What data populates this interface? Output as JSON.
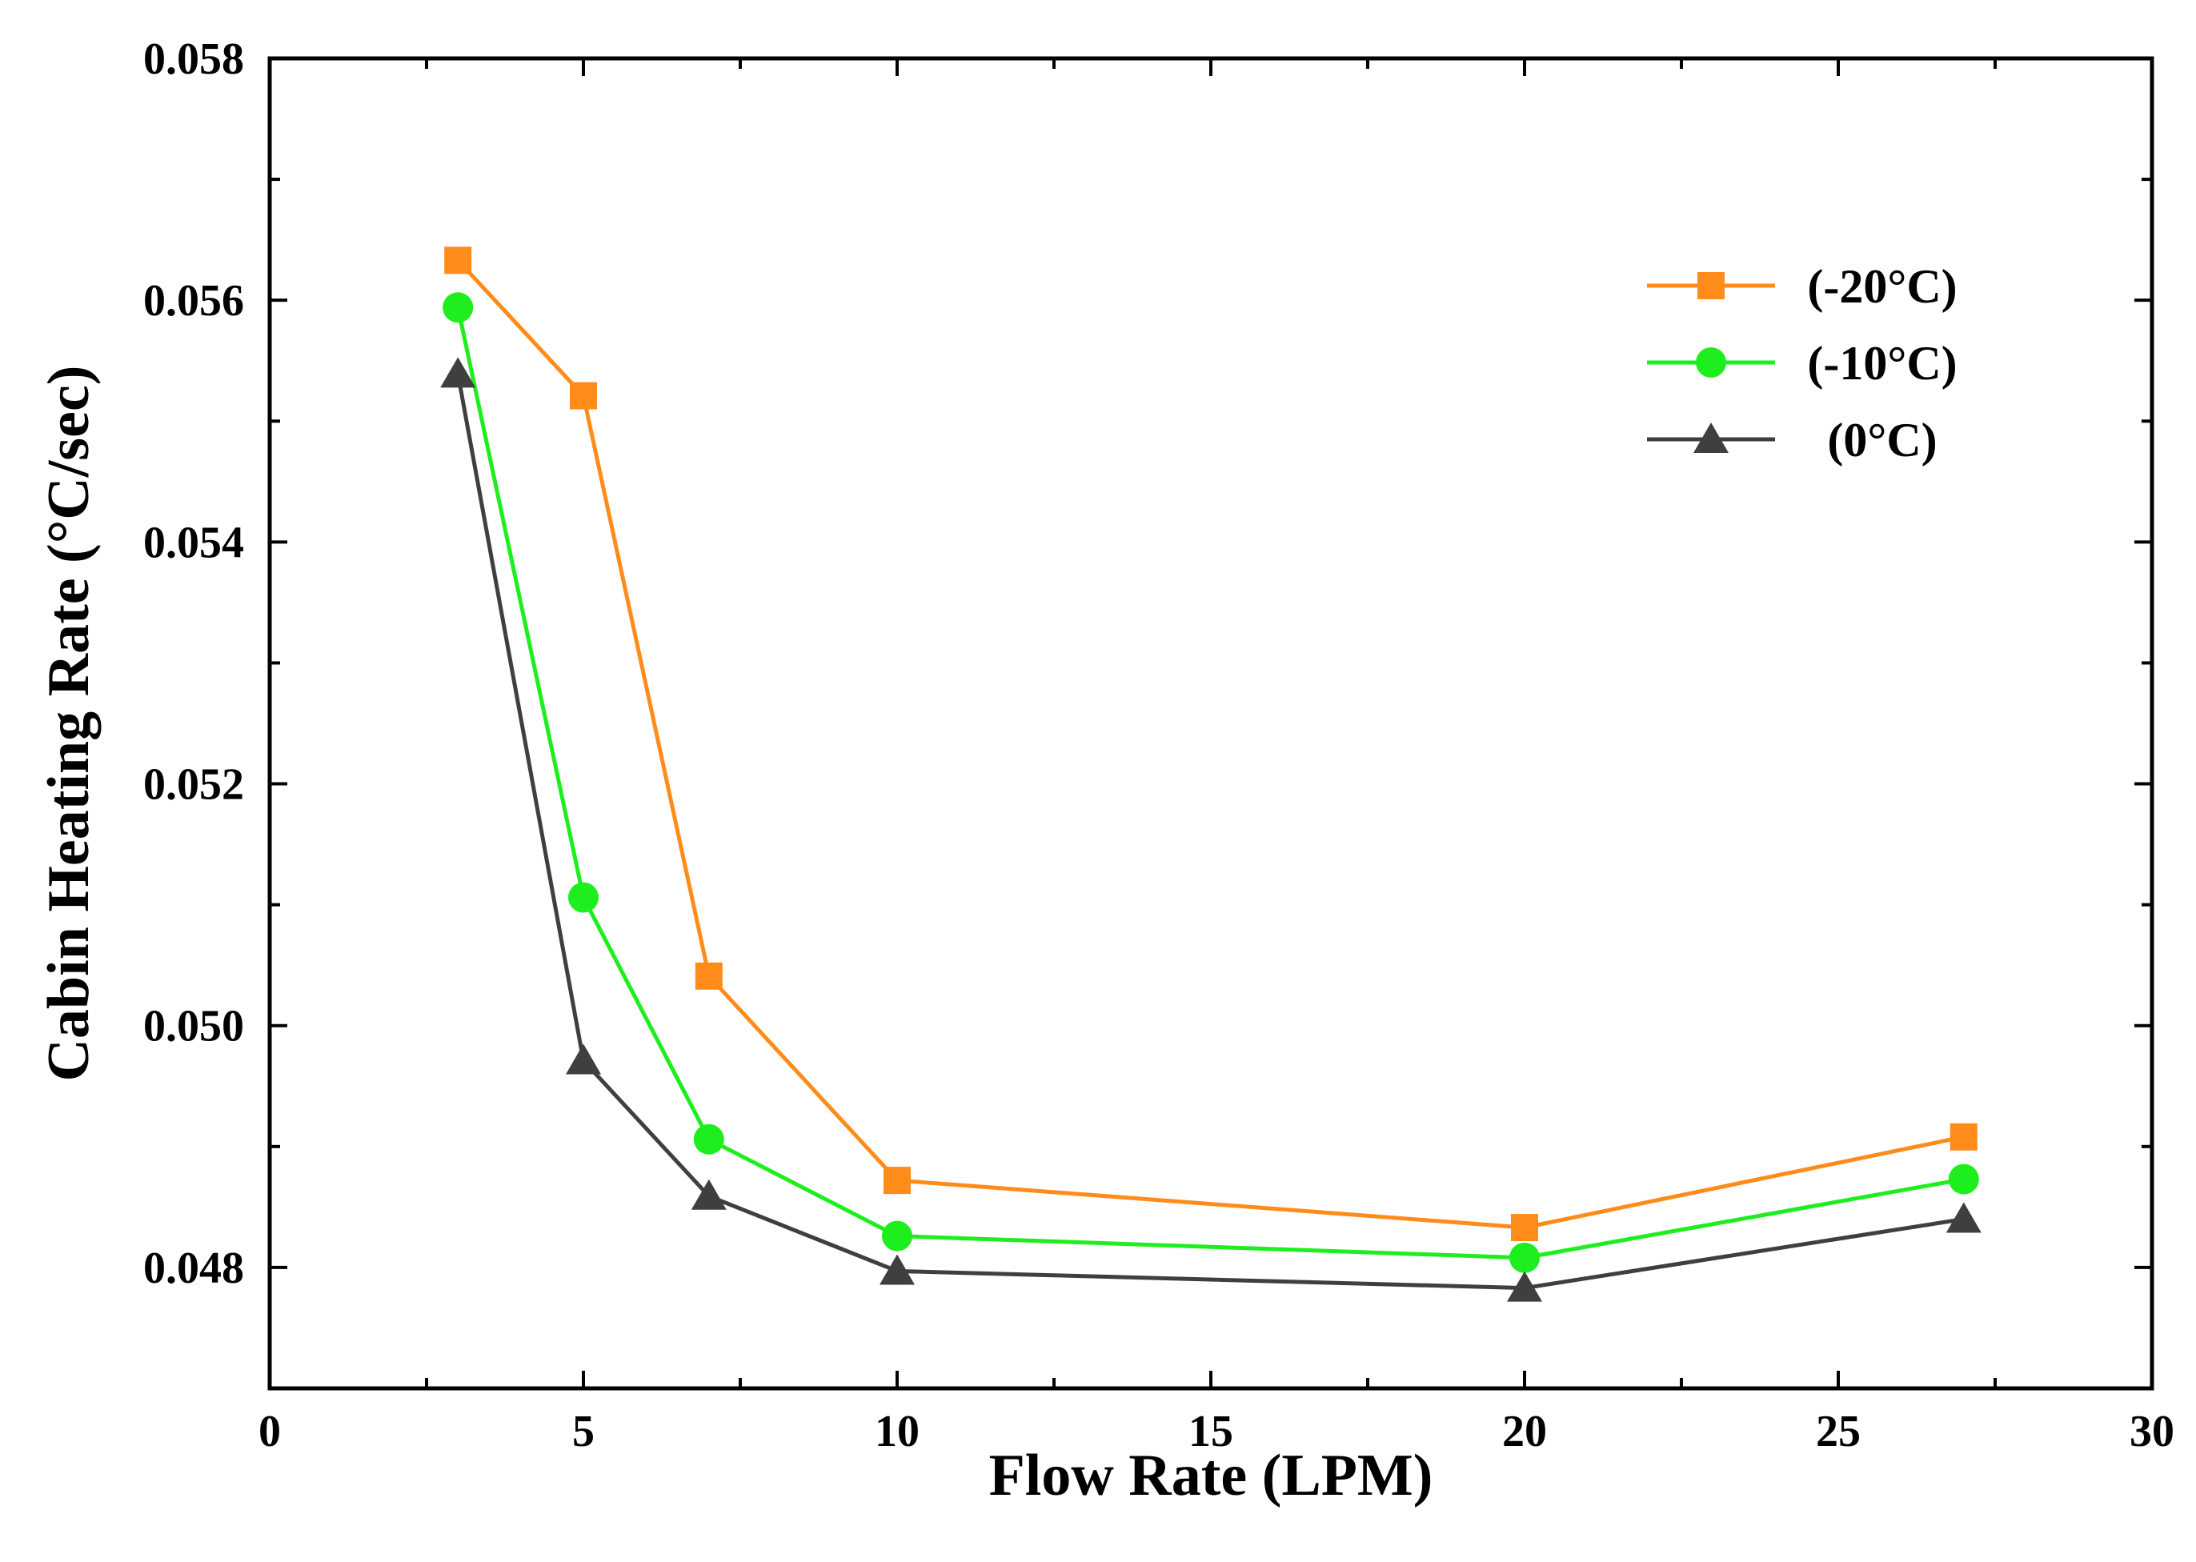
{
  "chart_data": {
    "type": "line",
    "title": "",
    "xlabel": "Flow Rate (LPM)",
    "ylabel": "Cabin Heating Rate (°C/sec)",
    "xlim": [
      0,
      30
    ],
    "ylim": [
      0.047,
      0.058
    ],
    "x_ticks": [
      0,
      5,
      10,
      15,
      20,
      25,
      30
    ],
    "y_ticks": [
      0.048,
      0.05,
      0.052,
      0.054,
      0.056,
      0.058
    ],
    "x_tick_labels": [
      "0",
      "5",
      "10",
      "15",
      "20",
      "25",
      "30"
    ],
    "y_tick_labels": [
      "0.048",
      "0.050",
      "0.052",
      "0.054",
      "0.056",
      "0.058"
    ],
    "grid": false,
    "legend_position": "top-right",
    "x": [
      3,
      5,
      7,
      10,
      20,
      27
    ],
    "series": [
      {
        "name": "(-20°C)",
        "color": "#ff8c1a",
        "marker": "square",
        "values": [
          0.05633,
          0.05521,
          0.05041,
          0.04872,
          0.04833,
          0.04908
        ]
      },
      {
        "name": "(-10°C)",
        "color": "#1eee1e",
        "marker": "circle",
        "values": [
          0.05594,
          0.05106,
          0.04906,
          0.04826,
          0.04808,
          0.04873
        ]
      },
      {
        "name": "(0°C)",
        "color": "#3f3f3f",
        "marker": "triangle",
        "values": [
          0.05539,
          0.04971,
          0.04859,
          0.04797,
          0.04783,
          0.0484
        ]
      }
    ]
  }
}
